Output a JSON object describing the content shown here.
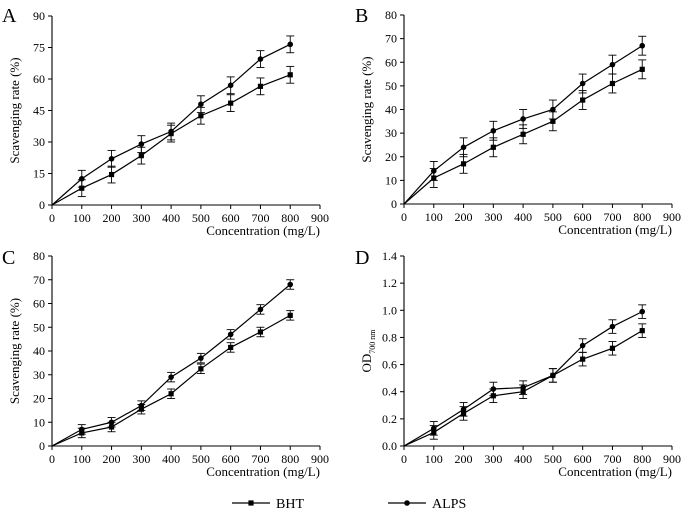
{
  "legend": {
    "items": [
      {
        "label": "BHT",
        "marker": "square"
      },
      {
        "label": "ALPS",
        "marker": "circle"
      }
    ]
  },
  "chart_data": [
    {
      "panel": "A",
      "type": "line",
      "xlabel": "Concentration (mg/L)",
      "ylabel": "Scavenging rate (%)",
      "x_ticks": [
        0,
        100,
        200,
        300,
        400,
        500,
        600,
        700,
        800,
        900
      ],
      "y_ticks": [
        0,
        15,
        30,
        45,
        60,
        75,
        90
      ],
      "y_tick_labels": [
        "0",
        "15",
        "30",
        "45",
        "60",
        "75",
        "90"
      ],
      "xlim": [
        0,
        900
      ],
      "ylim": [
        0,
        90
      ],
      "series": [
        {
          "name": "BHT",
          "marker": "square",
          "x": [
            0,
            100,
            200,
            300,
            400,
            500,
            600,
            700,
            800
          ],
          "y": [
            0,
            8,
            14.5,
            23.5,
            34,
            42.5,
            48.5,
            56.5,
            62
          ],
          "err": [
            0,
            4,
            4,
            4,
            4,
            4,
            4,
            4,
            4
          ]
        },
        {
          "name": "ALPS",
          "marker": "circle",
          "x": [
            0,
            100,
            200,
            300,
            400,
            500,
            600,
            700,
            800
          ],
          "y": [
            0,
            12.5,
            22,
            29,
            35,
            48,
            57,
            69.5,
            76.5
          ],
          "err": [
            0,
            4,
            4,
            4,
            4,
            4,
            4,
            4,
            4
          ]
        }
      ]
    },
    {
      "panel": "B",
      "type": "line",
      "xlabel": "Concentration (mg/L)",
      "ylabel": "Scavenging rate (%)",
      "x_ticks": [
        0,
        100,
        200,
        300,
        400,
        500,
        600,
        700,
        800,
        900
      ],
      "y_ticks": [
        0,
        10,
        20,
        30,
        40,
        50,
        60,
        70,
        80
      ],
      "y_tick_labels": [
        "0",
        "10",
        "20",
        "30",
        "40",
        "50",
        "60",
        "70",
        "80"
      ],
      "xlim": [
        0,
        900
      ],
      "ylim": [
        0,
        80
      ],
      "series": [
        {
          "name": "BHT",
          "marker": "square",
          "x": [
            0,
            100,
            200,
            300,
            400,
            500,
            600,
            700,
            800
          ],
          "y": [
            0,
            11,
            17,
            24,
            29.5,
            35,
            44,
            51,
            57
          ],
          "err": [
            0,
            4,
            4,
            4,
            4,
            4,
            4,
            4,
            4
          ]
        },
        {
          "name": "ALPS",
          "marker": "circle",
          "x": [
            0,
            100,
            200,
            300,
            400,
            500,
            600,
            700,
            800
          ],
          "y": [
            0,
            14,
            24,
            31,
            36,
            40,
            51,
            59,
            67
          ],
          "err": [
            0,
            4,
            4,
            4,
            4,
            4,
            4,
            4,
            4
          ]
        }
      ]
    },
    {
      "panel": "C",
      "type": "line",
      "xlabel": "Concentration (mg/L)",
      "ylabel": "Scavenging rate (%)",
      "x_ticks": [
        0,
        100,
        200,
        300,
        400,
        500,
        600,
        700,
        800,
        900
      ],
      "y_ticks": [
        0,
        10,
        20,
        30,
        40,
        50,
        60,
        70,
        80
      ],
      "y_tick_labels": [
        "0",
        "10",
        "20",
        "30",
        "40",
        "50",
        "60",
        "70",
        "80"
      ],
      "xlim": [
        0,
        900
      ],
      "ylim": [
        0,
        80
      ],
      "series": [
        {
          "name": "BHT",
          "marker": "square",
          "x": [
            0,
            100,
            200,
            300,
            400,
            500,
            600,
            700,
            800
          ],
          "y": [
            0,
            5.5,
            8,
            15.5,
            22,
            32.5,
            41.5,
            48,
            55
          ],
          "err": [
            0,
            2,
            2,
            2,
            2,
            2,
            2,
            2,
            2
          ]
        },
        {
          "name": "ALPS",
          "marker": "circle",
          "x": [
            0,
            100,
            200,
            300,
            400,
            500,
            600,
            700,
            800
          ],
          "y": [
            0,
            7,
            10,
            17,
            29,
            37,
            47,
            57.5,
            68
          ],
          "err": [
            0,
            2,
            2,
            2,
            2,
            2,
            2,
            2,
            2
          ]
        }
      ]
    },
    {
      "panel": "D",
      "type": "line",
      "xlabel": "Concentration (mg/L)",
      "ylabel_main": "OD",
      "ylabel_sub": "700 nm",
      "x_ticks": [
        0,
        100,
        200,
        300,
        400,
        500,
        600,
        700,
        800,
        900
      ],
      "y_ticks": [
        0,
        0.2,
        0.4,
        0.6,
        0.8,
        1.0,
        1.2,
        1.4
      ],
      "y_tick_labels": [
        "0.0",
        "0.2",
        "0.4",
        "0.6",
        "0.8",
        "1.0",
        "1.2",
        "1.4"
      ],
      "xlim": [
        0,
        900
      ],
      "ylim": [
        0,
        1.4
      ],
      "series": [
        {
          "name": "BHT",
          "marker": "square",
          "x": [
            0,
            100,
            200,
            300,
            400,
            500,
            600,
            700,
            800
          ],
          "y": [
            0,
            0.1,
            0.24,
            0.37,
            0.4,
            0.52,
            0.64,
            0.72,
            0.85
          ],
          "err": [
            0,
            0.05,
            0.05,
            0.05,
            0.05,
            0.05,
            0.05,
            0.05,
            0.05
          ]
        },
        {
          "name": "ALPS",
          "marker": "circle",
          "x": [
            0,
            100,
            200,
            300,
            400,
            500,
            600,
            700,
            800
          ],
          "y": [
            0,
            0.13,
            0.27,
            0.42,
            0.43,
            0.52,
            0.74,
            0.88,
            0.99
          ],
          "err": [
            0,
            0.05,
            0.05,
            0.05,
            0.05,
            0.05,
            0.05,
            0.05,
            0.05
          ]
        }
      ]
    }
  ]
}
